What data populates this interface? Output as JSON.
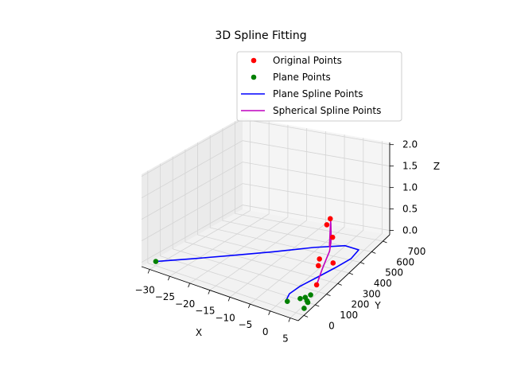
{
  "chart_data": {
    "type": "scatter",
    "projection": "3d",
    "title": "3D Spline Fitting",
    "xlabel": "X",
    "ylabel": "Y",
    "zlabel": "Z",
    "xlim": [
      -32,
      7
    ],
    "ylim": [
      -50,
      760
    ],
    "zlim": [
      -0.1,
      2.05
    ],
    "xticks": [
      -30,
      -25,
      -20,
      -15,
      -10,
      -5,
      0,
      5
    ],
    "yticks": [
      0,
      100,
      200,
      300,
      400,
      500,
      600,
      700
    ],
    "zticks": [
      0.0,
      0.5,
      1.0,
      1.5,
      2.0
    ],
    "xtick_labels": [
      "−30",
      "−25",
      "−20",
      "−15",
      "−10",
      "−5",
      "0",
      "5"
    ],
    "ytick_labels": [
      "0",
      "100",
      "200",
      "300",
      "400",
      "500",
      "600",
      "700"
    ],
    "ztick_labels": [
      "0.0",
      "0.5",
      "1.0",
      "1.5",
      "2.0"
    ],
    "grid": true,
    "legend_position": "top-right",
    "legend": [
      {
        "label": "Original Points",
        "marker": "dot",
        "color": "#ff0000"
      },
      {
        "label": "Plane Points",
        "marker": "dot",
        "color": "#008000"
      },
      {
        "label": "Plane Spline Points",
        "marker": "line",
        "color": "#0000ff"
      },
      {
        "label": "Spherical Spline Points",
        "marker": "line",
        "color": "#bf00bf"
      }
    ],
    "series": [
      {
        "name": "Original Points",
        "kind": "scatter",
        "color": "#ff0000",
        "points": [
          {
            "x": 4.5,
            "y": 320,
            "z": 1.3
          },
          {
            "x": 4.2,
            "y": 300,
            "z": 1.2
          },
          {
            "x": 4.8,
            "y": 330,
            "z": 0.85
          },
          {
            "x": 3.2,
            "y": 270,
            "z": 0.45
          },
          {
            "x": 3.5,
            "y": 250,
            "z": 0.35
          },
          {
            "x": 5.8,
            "y": 300,
            "z": 0.35
          },
          {
            "x": 4.5,
            "y": 200,
            "z": 0.05
          }
        ]
      },
      {
        "name": "Plane Points",
        "kind": "scatter",
        "color": "#008000",
        "points": [
          {
            "x": -30.0,
            "y": 0,
            "z": 0.0
          },
          {
            "x": 2.0,
            "y": 30,
            "z": 0.0
          },
          {
            "x": 3.8,
            "y": 80,
            "z": 0.0
          },
          {
            "x": 4.5,
            "y": 100,
            "z": 0.0
          },
          {
            "x": 5.0,
            "y": 130,
            "z": 0.0
          },
          {
            "x": 5.5,
            "y": 80,
            "z": 0.0
          },
          {
            "x": 6.0,
            "y": 70,
            "z": 0.0
          },
          {
            "x": 6.5,
            "y": 20,
            "z": 0.0
          }
        ]
      },
      {
        "name": "Plane Spline Points",
        "kind": "line",
        "color": "#0000ff",
        "points": [
          {
            "x": -30.0,
            "y": 0,
            "z": 0.0
          },
          {
            "x": -25.0,
            "y": 120,
            "z": 0.0
          },
          {
            "x": -19.0,
            "y": 250,
            "z": 0.0
          },
          {
            "x": -12.0,
            "y": 380,
            "z": 0.0
          },
          {
            "x": -5.0,
            "y": 500,
            "z": 0.0
          },
          {
            "x": 1.0,
            "y": 570,
            "z": 0.0
          },
          {
            "x": 4.8,
            "y": 560,
            "z": 0.0
          },
          {
            "x": 5.2,
            "y": 480,
            "z": 0.0
          },
          {
            "x": 4.0,
            "y": 380,
            "z": 0.0
          },
          {
            "x": 2.5,
            "y": 270,
            "z": 0.0
          },
          {
            "x": 1.2,
            "y": 170,
            "z": 0.0
          },
          {
            "x": 0.8,
            "y": 90,
            "z": 0.0
          },
          {
            "x": 1.5,
            "y": 40,
            "z": 0.0
          },
          {
            "x": 2.5,
            "y": 30,
            "z": 0.0
          }
        ]
      },
      {
        "name": "Spherical Spline Points",
        "kind": "line",
        "color": "#bf00bf",
        "points": [
          {
            "x": 4.0,
            "y": 330,
            "z": 0.6
          },
          {
            "x": 4.3,
            "y": 325,
            "z": 0.95
          },
          {
            "x": 4.6,
            "y": 320,
            "z": 1.25
          },
          {
            "x": 4.8,
            "y": 315,
            "z": 1.2
          },
          {
            "x": 5.0,
            "y": 310,
            "z": 0.95
          },
          {
            "x": 5.1,
            "y": 305,
            "z": 0.8
          },
          {
            "x": 4.9,
            "y": 300,
            "z": 0.6
          },
          {
            "x": 4.6,
            "y": 280,
            "z": 0.45
          },
          {
            "x": 4.5,
            "y": 250,
            "z": 0.3
          },
          {
            "x": 4.5,
            "y": 200,
            "z": 0.05
          }
        ]
      }
    ]
  }
}
